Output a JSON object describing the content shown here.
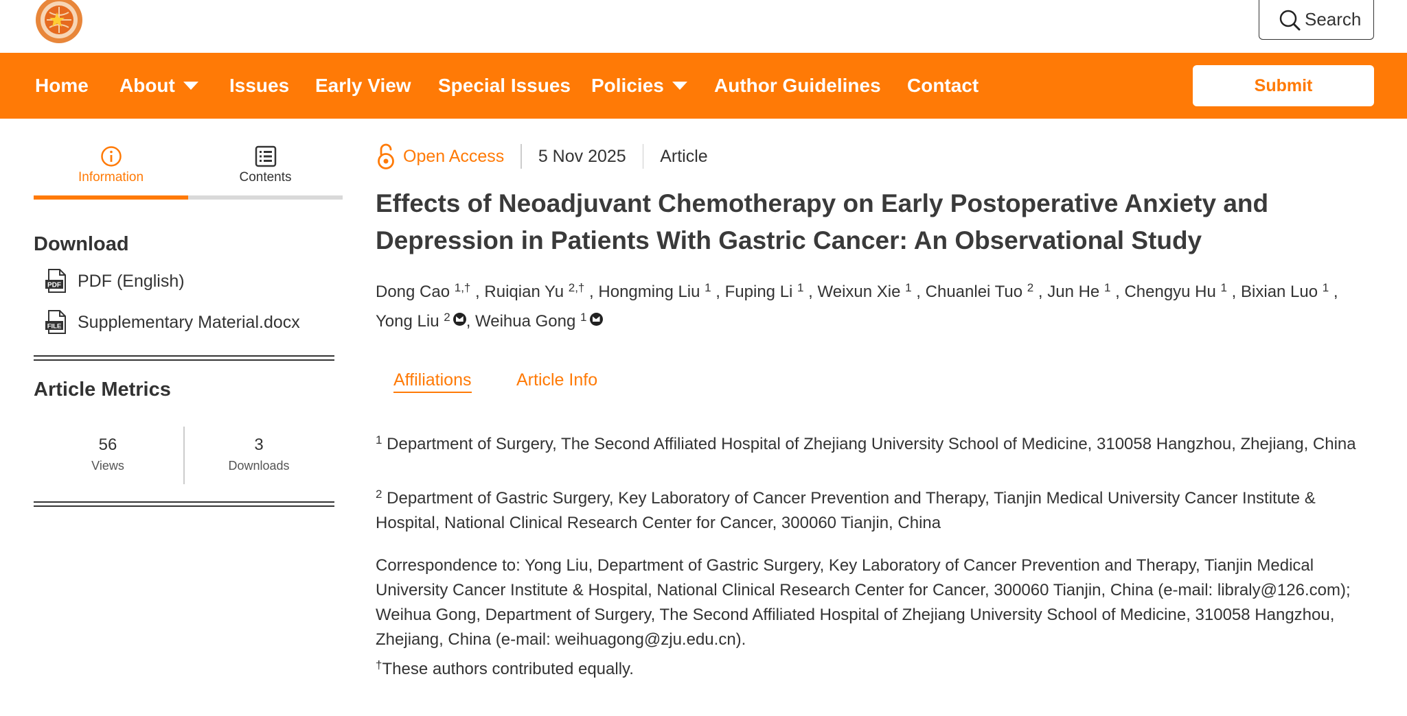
{
  "header": {
    "logo": "journal-logo",
    "search_label": "Search"
  },
  "nav": {
    "items": [
      {
        "label": "Home",
        "has_dropdown": false
      },
      {
        "label": "About",
        "has_dropdown": true
      },
      {
        "label": "Issues",
        "has_dropdown": false
      },
      {
        "label": "Early View",
        "has_dropdown": false
      },
      {
        "label": "Special Issues",
        "has_dropdown": false
      },
      {
        "label": "Policies",
        "has_dropdown": true
      },
      {
        "label": "Author Guidelines",
        "has_dropdown": false
      },
      {
        "label": "Contact",
        "has_dropdown": false
      }
    ],
    "submit_label": "Submit"
  },
  "sidebar": {
    "tabs": [
      {
        "label": "Information",
        "icon": "info-icon",
        "active": true
      },
      {
        "label": "Contents",
        "icon": "list-icon",
        "active": false
      }
    ],
    "download_heading": "Download",
    "downloads": [
      {
        "label": "PDF (English)",
        "icon": "pdf-file-icon"
      },
      {
        "label": "Supplementary Material.docx",
        "icon": "file-icon"
      }
    ],
    "metrics_heading": "Article Metrics",
    "metrics": [
      {
        "value": "56",
        "label": "Views"
      },
      {
        "value": "3",
        "label": "Downloads"
      }
    ]
  },
  "article": {
    "open_access": "Open Access",
    "date": "5 Nov 2025",
    "type": "Article",
    "title": "Effects of Neoadjuvant Chemotherapy on Early Postoperative Anxiety and Depression in Patients With Gastric Cancer: An Observational Study",
    "authors": [
      {
        "name": "Dong Cao",
        "sup": "1,†"
      },
      {
        "name": "Ruiqian Yu",
        "sup": "2,†"
      },
      {
        "name": "Hongming Liu",
        "sup": "1"
      },
      {
        "name": "Fuping Li",
        "sup": "1"
      },
      {
        "name": "Weixun Xie",
        "sup": "1"
      },
      {
        "name": "Chuanlei Tuo",
        "sup": "2"
      },
      {
        "name": "Jun He",
        "sup": "1"
      },
      {
        "name": "Chengyu Hu",
        "sup": "1"
      },
      {
        "name": "Bixian Luo",
        "sup": "1"
      },
      {
        "name": "Yong Liu",
        "sup": "2",
        "email_icon": true
      },
      {
        "name": "Weihua Gong",
        "sup": "1",
        "email_icon": true
      }
    ],
    "content_tabs": [
      {
        "label": "Affiliations",
        "active": true
      },
      {
        "label": "Article Info",
        "active": false
      }
    ],
    "affiliations": [
      {
        "num": "1",
        "text": "Department of Surgery, The Second Affiliated Hospital of Zhejiang University School of Medicine, 310058 Hangzhou, Zhejiang, China"
      },
      {
        "num": "2",
        "text": "Department of Gastric Surgery, Key Laboratory of Cancer Prevention and Therapy, Tianjin Medical University Cancer Institute & Hospital, National Clinical Research Center for Cancer, 300060 Tianjin, China"
      }
    ],
    "correspondence": "Correspondence to: Yong Liu, Department of Gastric Surgery, Key Laboratory of Cancer Prevention and Therapy, Tianjin Medical University Cancer Institute & Hospital, National Clinical Research Center for Cancer, 300060 Tianjin, China (e-mail: libraly@126.com); Weihua Gong, Department of Surgery, The Second Affiliated Hospital of Zhejiang University School of Medicine, 310058 Hangzhou, Zhejiang, China (e-mail: weihuagong@zju.edu.cn).",
    "equal_contribution_mark": "†",
    "equal_contribution": "These authors contributed equally."
  },
  "colors": {
    "brand_orange": "#ff7a06",
    "text": "#333333",
    "rule_grey": "#d9d9d9"
  }
}
